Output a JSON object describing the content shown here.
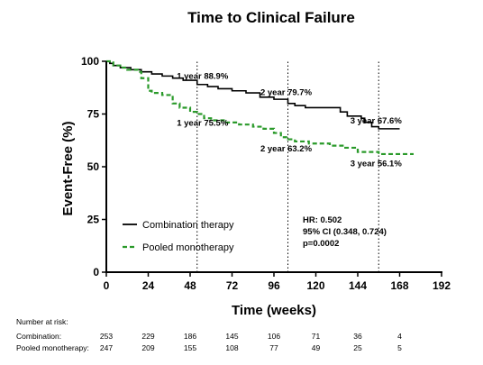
{
  "chart_data": {
    "type": "line",
    "title": "Time to Clinical Failure",
    "xlabel": "Time (weeks)",
    "ylabel": "Event-Free (%)",
    "xlim": [
      0,
      192
    ],
    "ylim": [
      0,
      100
    ],
    "xticks": [
      "0",
      "24",
      "48",
      "72",
      "96",
      "120",
      "144",
      "168",
      "192"
    ],
    "yticks": [
      "0",
      "25",
      "50",
      "75",
      "100"
    ],
    "reference_lines_x": [
      52,
      104,
      156
    ],
    "series": [
      {
        "name": "Combination therapy",
        "color": "#000000",
        "style": "solid",
        "x": [
          0,
          2,
          4,
          8,
          14,
          20,
          26,
          32,
          38,
          44,
          52,
          58,
          64,
          72,
          80,
          88,
          96,
          104,
          108,
          114,
          132,
          134,
          138,
          146,
          148,
          152,
          156,
          160,
          168
        ],
        "y": [
          100,
          99,
          98,
          97,
          96,
          95,
          94,
          93,
          92,
          91,
          89,
          88,
          87,
          86,
          85,
          83,
          82,
          80,
          79,
          78,
          78,
          76,
          74,
          73,
          71,
          69,
          68,
          68,
          68
        ]
      },
      {
        "name": "Pooled monotherapy",
        "color": "#2a9a2a",
        "style": "dashed",
        "x": [
          0,
          4,
          8,
          12,
          18,
          20,
          24,
          26,
          32,
          38,
          42,
          48,
          52,
          56,
          60,
          68,
          76,
          84,
          90,
          96,
          100,
          104,
          108,
          116,
          128,
          136,
          144,
          156,
          160,
          168,
          176
        ],
        "y": [
          100,
          98,
          97,
          96,
          95,
          92,
          86,
          85,
          84,
          80,
          78,
          76,
          75,
          73,
          72,
          71,
          70,
          69,
          68,
          66,
          64,
          63,
          62,
          61,
          60,
          59,
          57,
          56,
          56,
          56,
          56
        ]
      }
    ],
    "annotations": [
      {
        "text": "1 year 88.9%",
        "x": 52,
        "y": 89
      },
      {
        "text": "1 year 75.5%",
        "x": 52,
        "y": 75.5
      },
      {
        "text": "2 year 79.7%",
        "x": 104,
        "y": 79.7
      },
      {
        "text": "2 year 63.2%",
        "x": 104,
        "y": 63.2
      },
      {
        "text": "3 year 67.6%",
        "x": 156,
        "y": 67.6
      },
      {
        "text": "3 year 56.1%",
        "x": 156,
        "y": 56.1
      }
    ],
    "stats_box": {
      "hr": "HR: 0.502",
      "ci": "95% CI (0.348, 0.724)",
      "p": "p=0.0002"
    },
    "legend": [
      "Combination therapy",
      "Pooled monotherapy"
    ],
    "legend_position": "bottom-left"
  },
  "risk_table": {
    "header": "Number at risk:",
    "rows": [
      {
        "label": "Combination:",
        "values": [
          "253",
          "229",
          "186",
          "145",
          "106",
          "71",
          "36",
          "4"
        ]
      },
      {
        "label": "Pooled monotherapy:",
        "values": [
          "247",
          "209",
          "155",
          "108",
          "77",
          "49",
          "25",
          "5"
        ]
      }
    ]
  }
}
